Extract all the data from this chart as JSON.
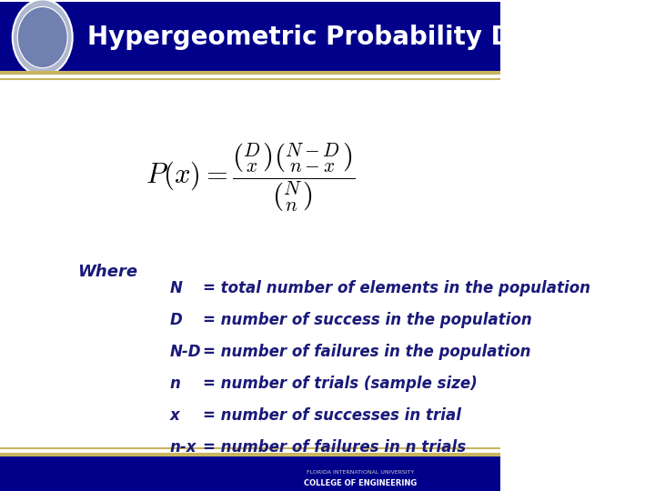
{
  "title": "Hypergeometric Probability Distribution",
  "title_bg_color": "#00008B",
  "title_text_color": "#FFFFFF",
  "separator_color": "#C8B560",
  "body_bg_color": "#FFFFFF",
  "formula_color": "#000000",
  "label_color": "#1a1a7a",
  "where_text": "Where",
  "definitions": [
    [
      "N",
      "= total number of elements in the population"
    ],
    [
      "D",
      "= number of success in the population"
    ],
    [
      "N-D",
      "= number of failures in the population"
    ],
    [
      "n",
      "= number of trials (sample size)"
    ],
    [
      "x",
      "= number of successes in trial"
    ],
    [
      "n-x",
      "= number of failures in n trials"
    ]
  ],
  "formula_latex": "P(x) = \\dfrac{\\binom{D}{x}\\binom{N-D}{n-x}}{\\binom{N}{n}}",
  "footer_bg_color": "#00008B",
  "footer_gold_color": "#C8B560"
}
